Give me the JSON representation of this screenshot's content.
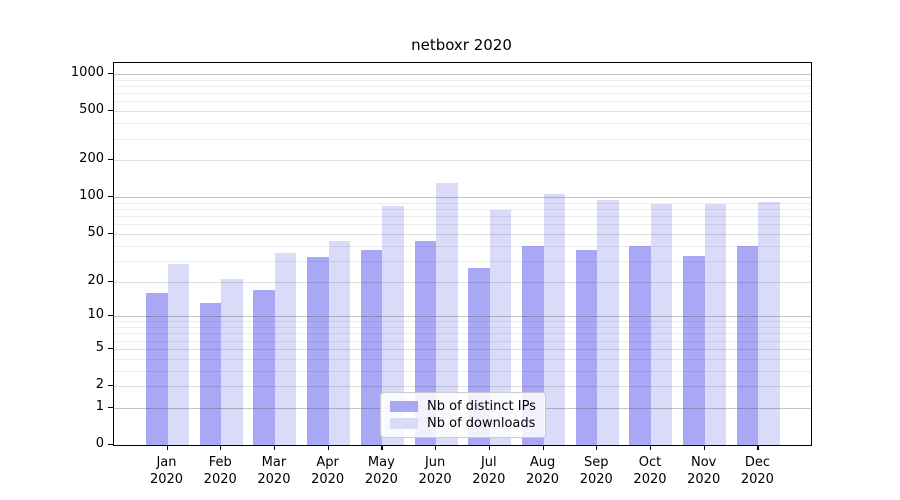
{
  "title": "netboxr 2020",
  "legend": {
    "items": [
      {
        "label": "Nb of distinct IPs"
      },
      {
        "label": "Nb of downloads"
      }
    ]
  },
  "colors": {
    "distinct_ips_bar": "#a8a8f6",
    "downloads_bar": "#dadaf9",
    "axis": "#000000",
    "background": "#ffffff"
  },
  "chart_data": {
    "type": "bar",
    "title": "netboxr 2020",
    "categories": [
      "Jan 2020",
      "Feb 2020",
      "Mar 2020",
      "Apr 2020",
      "May 2020",
      "Jun 2020",
      "Jul 2020",
      "Aug 2020",
      "Sep 2020",
      "Oct 2020",
      "Nov 2020",
      "Dec 2020"
    ],
    "x_tick_month": [
      "Jan",
      "Feb",
      "Mar",
      "Apr",
      "May",
      "Jun",
      "Jul",
      "Aug",
      "Sep",
      "Oct",
      "Nov",
      "Dec"
    ],
    "x_tick_year": "2020",
    "series": [
      {
        "name": "Nb of distinct IPs",
        "color": "#a8a8f6",
        "values": [
          16,
          13,
          17,
          32,
          37,
          44,
          26,
          40,
          37,
          40,
          33,
          40
        ]
      },
      {
        "name": "Nb of downloads",
        "color": "#dadaf9",
        "values": [
          28,
          21,
          35,
          44,
          85,
          130,
          78,
          107,
          95,
          88,
          88,
          91
        ]
      }
    ],
    "xlabel": "",
    "ylabel": "",
    "y_scale": "log1p",
    "y_ticks": [
      0,
      1,
      2,
      5,
      10,
      20,
      50,
      100,
      200,
      500,
      1000
    ],
    "y_minor_ticks": [
      3,
      4,
      6,
      7,
      8,
      9,
      30,
      40,
      60,
      70,
      80,
      90,
      300,
      400,
      600,
      700,
      800,
      900
    ],
    "ylim": [
      0,
      1300
    ],
    "grid": "on",
    "legend_position": "inside lower-center"
  }
}
